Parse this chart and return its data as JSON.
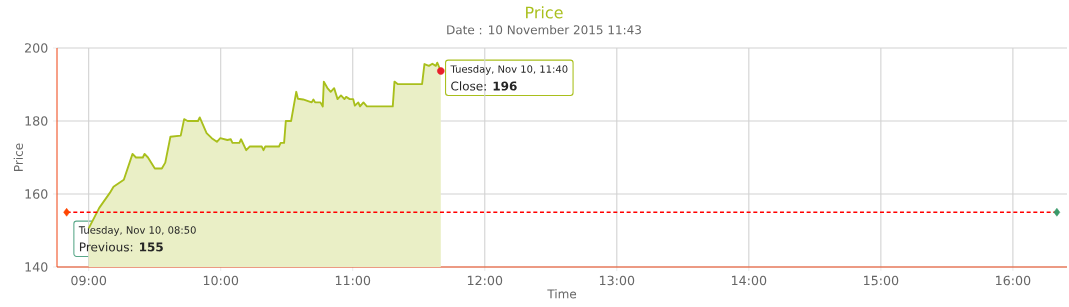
{
  "chart_data": {
    "type": "area",
    "title": "Price",
    "subtitle": "Date : 10 November 2015 11:43",
    "xlabel": "Time",
    "ylabel": "Price",
    "xlim": [
      8.76,
      16.41
    ],
    "ylim": [
      140,
      200
    ],
    "xticks": [
      {
        "value": 9,
        "label": "09:00"
      },
      {
        "value": 10,
        "label": "10:00"
      },
      {
        "value": 11,
        "label": "11:00"
      },
      {
        "value": 12,
        "label": "12:00"
      },
      {
        "value": 13,
        "label": "13:00"
      },
      {
        "value": 14,
        "label": "14:00"
      },
      {
        "value": 15,
        "label": "15:00"
      },
      {
        "value": 16,
        "label": "16:00"
      }
    ],
    "yticks": [
      140,
      160,
      180,
      200
    ],
    "grid": true,
    "legend": false,
    "series": [
      {
        "color": "#a9bf1c",
        "x": [
          9.0,
          9.08,
          9.16,
          9.188,
          9.266,
          9.332,
          9.358,
          9.41,
          9.423,
          9.449,
          9.501,
          9.554,
          9.58,
          9.619,
          9.697,
          9.723,
          9.749,
          9.828,
          9.841,
          9.893,
          9.932,
          9.971,
          9.997,
          10.05,
          10.076,
          10.089,
          10.141,
          10.154,
          10.193,
          10.219,
          10.311,
          10.324,
          10.337,
          10.441,
          10.454,
          10.48,
          10.493,
          10.533,
          10.572,
          10.585,
          10.624,
          10.689,
          10.702,
          10.715,
          10.755,
          10.773,
          10.781,
          10.807,
          10.833,
          10.859,
          10.885,
          10.911,
          10.937,
          10.95,
          10.977,
          11.003,
          11.016,
          11.042,
          11.055,
          11.081,
          11.107,
          11.303,
          11.316,
          11.342,
          11.525,
          11.543,
          11.577,
          11.603,
          11.629,
          11.64,
          11.667
        ],
        "values": [
          150.6,
          156.2,
          160.3,
          162,
          163.9,
          171,
          170,
          170,
          171,
          170,
          167,
          167,
          168.6,
          175.7,
          176,
          180.5,
          180,
          180,
          181,
          176.7,
          175.3,
          174.3,
          175.3,
          174.8,
          175,
          174,
          174,
          175,
          172,
          173,
          173,
          172,
          173,
          173,
          174,
          174,
          180,
          180,
          188,
          186.1,
          185.9,
          185.1,
          185.9,
          185.1,
          185.1,
          184,
          190.8,
          189.1,
          188,
          189,
          186,
          187,
          186,
          186.6,
          186,
          186,
          184.2,
          185.1,
          184,
          185.1,
          184,
          184,
          190.8,
          190.1,
          190.1,
          195.6,
          195.1,
          195.7,
          195.1,
          196,
          193.7
        ]
      },
      {
        "type": "scatter",
        "color": "#e8202a",
        "marker": "circle",
        "x": [
          11.667
        ],
        "values": [
          193.7
        ]
      },
      {
        "type": "line",
        "color": "#ff0000",
        "line_style": "dashed",
        "marker": "diamond",
        "colors": [
          "#ff4500",
          "#3a9a6a"
        ],
        "x": [
          8.833,
          16.333
        ],
        "values": [
          155,
          155
        ]
      }
    ],
    "annotations": [
      "Tuesday, Nov 10, 08:50",
      "Previous: **155**",
      "Tuesday, Nov 10, 11:40",
      "Close: **196**"
    ]
  }
}
